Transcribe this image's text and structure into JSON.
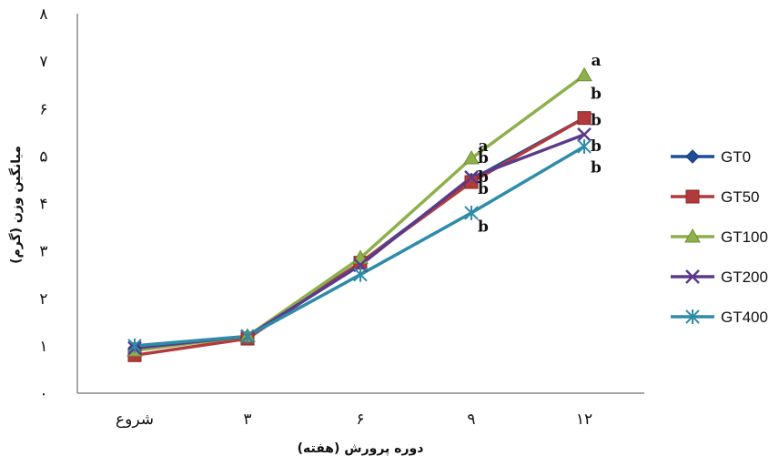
{
  "chart_data": {
    "type": "line",
    "xlabel": "دوره پرورش (هفته)",
    "ylabel": "میانگین وزن (گرم)",
    "categories": [
      "شروع",
      "۳",
      "۶",
      "۹",
      "۱۲"
    ],
    "y_tick_labels": [
      "۰",
      "۱",
      "۲",
      "۳",
      "۴",
      "۵",
      "۶",
      "۷",
      "۸"
    ],
    "ylim": [
      0,
      8
    ],
    "grid": false,
    "legend_position": "right",
    "series": [
      {
        "name": "GT0",
        "color": "#1f4e99",
        "marker": "diamond",
        "values": [
          0.95,
          1.2,
          2.75,
          4.5,
          5.8
        ]
      },
      {
        "name": "GT50",
        "color": "#b33a3a",
        "marker": "square",
        "values": [
          0.8,
          1.15,
          2.75,
          4.45,
          5.8
        ]
      },
      {
        "name": "GT100",
        "color": "#8db04a",
        "marker": "triangle",
        "values": [
          0.9,
          1.2,
          2.85,
          4.95,
          6.7
        ]
      },
      {
        "name": "GT200",
        "color": "#5b3a8c",
        "marker": "x",
        "values": [
          0.95,
          1.2,
          2.7,
          4.55,
          5.45
        ]
      },
      {
        "name": "GT400",
        "color": "#2e8ca8",
        "marker": "asterisk",
        "values": [
          1.0,
          1.2,
          2.5,
          3.8,
          5.2
        ]
      }
    ],
    "annotations": [
      {
        "text": "a",
        "category": "۹",
        "y": 5.2
      },
      {
        "text": "b",
        "category": "۹",
        "y": 4.95
      },
      {
        "text": "b",
        "category": "۹",
        "y": 4.55
      },
      {
        "text": "b",
        "category": "۹",
        "y": 4.3
      },
      {
        "text": "b",
        "category": "۹",
        "y": 3.5
      },
      {
        "text": "a",
        "category": "۱۲",
        "y": 7.0
      },
      {
        "text": "b",
        "category": "۱۲",
        "y": 6.3
      },
      {
        "text": "b",
        "category": "۱۲",
        "y": 5.75
      },
      {
        "text": "b",
        "category": "۱۲",
        "y": 5.2
      },
      {
        "text": "b",
        "category": "۱۲",
        "y": 4.75
      }
    ]
  }
}
